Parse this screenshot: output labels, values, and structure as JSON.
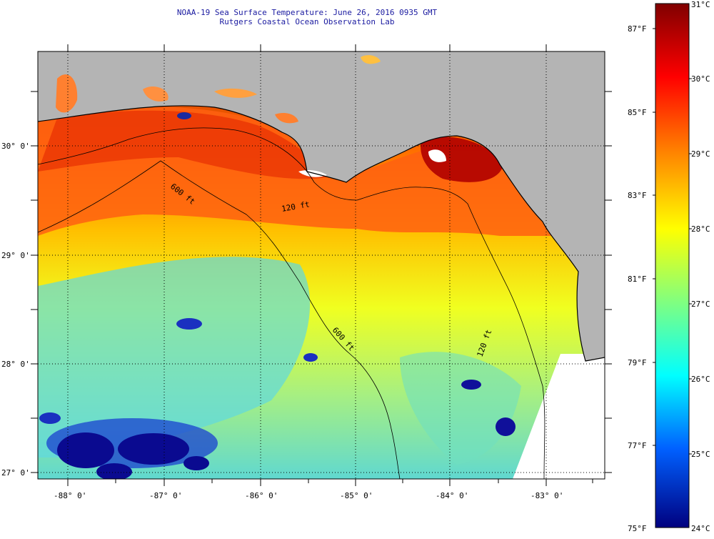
{
  "title": {
    "line1": "NOAA-19 Sea Surface Temperature:  June 26, 2016 0935 GMT",
    "line2": "Rutgers Coastal Ocean Observation Lab"
  },
  "axes": {
    "lon_labels": [
      "-88° 0'",
      "-87° 0'",
      "-86° 0'",
      "-85° 0'",
      "-84° 0'",
      "-83° 0'"
    ],
    "lat_labels": [
      "30° 0'",
      "29° 0'",
      "28° 0'",
      "27° 0'"
    ]
  },
  "isobaths": [
    "600 ft",
    "120 ft",
    "600 ft",
    "120 ft"
  ],
  "colorbar": {
    "celsius": [
      "31°C",
      "30°C",
      "29°C",
      "28°C",
      "27°C",
      "26°C",
      "25°C",
      "24°C"
    ],
    "fahrenheit": [
      "87°F",
      "85°F",
      "83°F",
      "81°F",
      "79°F",
      "77°F",
      "75°F"
    ]
  },
  "colors": {
    "land": "#b4b4b4",
    "no_data": "#ffffff",
    "hot": "#b00000",
    "warm": "#ff4a00",
    "mid": "#ffe800",
    "cool": "#40e0d0",
    "cold": "#1010a0"
  }
}
